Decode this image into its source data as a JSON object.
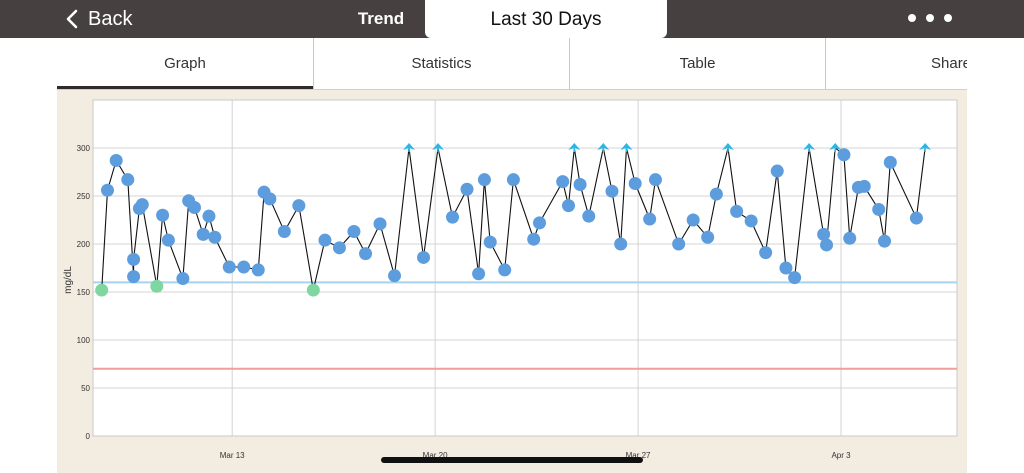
{
  "nav": {
    "back_label": "Back",
    "title": "Trend",
    "range_label": "Last 30 Days"
  },
  "tabs": [
    {
      "label": "Graph",
      "active": true
    },
    {
      "label": "Statistics",
      "active": false
    },
    {
      "label": "Table",
      "active": false
    },
    {
      "label": "Share",
      "active": false
    }
  ],
  "colors": {
    "point_normal": "#5d9ddd",
    "point_low": "#7fd6a1",
    "high_marker": "#2bb6e8",
    "line": "#111111",
    "target_high": "#a9d2ee",
    "target_low": "#ef9f9a"
  },
  "chart_data": {
    "type": "line",
    "ylabel": "mg/dL",
    "ylim": [
      0,
      350
    ],
    "y_ticks": [
      0,
      50,
      100,
      150,
      200,
      250,
      300
    ],
    "x_ticks": [
      {
        "label": "Mar 13",
        "x": 9
      },
      {
        "label": "Mar 20",
        "x": 16
      },
      {
        "label": "Mar 27",
        "x": 23
      },
      {
        "label": "Apr 3",
        "x": 30
      }
    ],
    "xlim": [
      4.2,
      34.0
    ],
    "thresholds": {
      "high": 160,
      "low": 70
    },
    "grid": true,
    "high_limit": 300,
    "points": [
      [
        4.5,
        152,
        "low"
      ],
      [
        4.7,
        256,
        "normal"
      ],
      [
        5.0,
        287,
        "normal"
      ],
      [
        5.4,
        267,
        "normal"
      ],
      [
        5.6,
        166,
        "normal"
      ],
      [
        5.6,
        184,
        "normal"
      ],
      [
        5.8,
        237,
        "normal"
      ],
      [
        5.9,
        241,
        "normal"
      ],
      [
        6.4,
        156,
        "low"
      ],
      [
        6.6,
        230,
        "normal"
      ],
      [
        6.8,
        204,
        "normal"
      ],
      [
        7.3,
        164,
        "normal"
      ],
      [
        7.5,
        245,
        "normal"
      ],
      [
        7.7,
        238,
        "normal"
      ],
      [
        8.0,
        210,
        "normal"
      ],
      [
        8.2,
        229,
        "normal"
      ],
      [
        8.4,
        207,
        "normal"
      ],
      [
        8.9,
        176,
        "normal"
      ],
      [
        9.4,
        176,
        "normal"
      ],
      [
        9.9,
        173,
        "normal"
      ],
      [
        10.1,
        254,
        "normal"
      ],
      [
        10.3,
        247,
        "normal"
      ],
      [
        10.8,
        213,
        "normal"
      ],
      [
        11.3,
        240,
        "normal"
      ],
      [
        11.8,
        152,
        "low"
      ],
      [
        12.2,
        204,
        "normal"
      ],
      [
        12.7,
        196,
        "normal"
      ],
      [
        13.2,
        213,
        "normal"
      ],
      [
        13.6,
        190,
        "normal"
      ],
      [
        14.1,
        221,
        "normal"
      ],
      [
        14.6,
        167,
        "normal"
      ],
      [
        15.1,
        300,
        "high"
      ],
      [
        15.6,
        186,
        "normal"
      ],
      [
        16.1,
        300,
        "high"
      ],
      [
        16.6,
        228,
        "normal"
      ],
      [
        17.1,
        257,
        "normal"
      ],
      [
        17.5,
        169,
        "normal"
      ],
      [
        17.7,
        267,
        "normal"
      ],
      [
        17.9,
        202,
        "normal"
      ],
      [
        18.4,
        173,
        "normal"
      ],
      [
        18.7,
        267,
        "normal"
      ],
      [
        19.4,
        205,
        "normal"
      ],
      [
        19.6,
        222,
        "normal"
      ],
      [
        20.4,
        265,
        "normal"
      ],
      [
        20.6,
        240,
        "normal"
      ],
      [
        20.8,
        300,
        "high"
      ],
      [
        21.0,
        262,
        "normal"
      ],
      [
        21.3,
        229,
        "normal"
      ],
      [
        21.8,
        300,
        "high"
      ],
      [
        22.1,
        255,
        "normal"
      ],
      [
        22.4,
        200,
        "normal"
      ],
      [
        22.6,
        300,
        "high"
      ],
      [
        22.9,
        263,
        "normal"
      ],
      [
        23.4,
        226,
        "normal"
      ],
      [
        23.6,
        267,
        "normal"
      ],
      [
        24.4,
        200,
        "normal"
      ],
      [
        24.9,
        225,
        "normal"
      ],
      [
        25.4,
        207,
        "normal"
      ],
      [
        25.7,
        252,
        "normal"
      ],
      [
        26.1,
        300,
        "high"
      ],
      [
        26.4,
        234,
        "normal"
      ],
      [
        26.9,
        224,
        "normal"
      ],
      [
        27.4,
        191,
        "normal"
      ],
      [
        27.8,
        276,
        "normal"
      ],
      [
        28.1,
        175,
        "normal"
      ],
      [
        28.4,
        165,
        "normal"
      ],
      [
        28.9,
        300,
        "high"
      ],
      [
        29.4,
        210,
        "normal"
      ],
      [
        29.5,
        199,
        "normal"
      ],
      [
        29.8,
        300,
        "high"
      ],
      [
        30.1,
        293,
        "normal"
      ],
      [
        30.3,
        206,
        "normal"
      ],
      [
        30.6,
        259,
        "normal"
      ],
      [
        30.8,
        260,
        "normal"
      ],
      [
        31.3,
        236,
        "normal"
      ],
      [
        31.5,
        203,
        "normal"
      ],
      [
        31.7,
        285,
        "normal"
      ],
      [
        32.6,
        227,
        "normal"
      ],
      [
        32.9,
        300,
        "high"
      ]
    ]
  }
}
